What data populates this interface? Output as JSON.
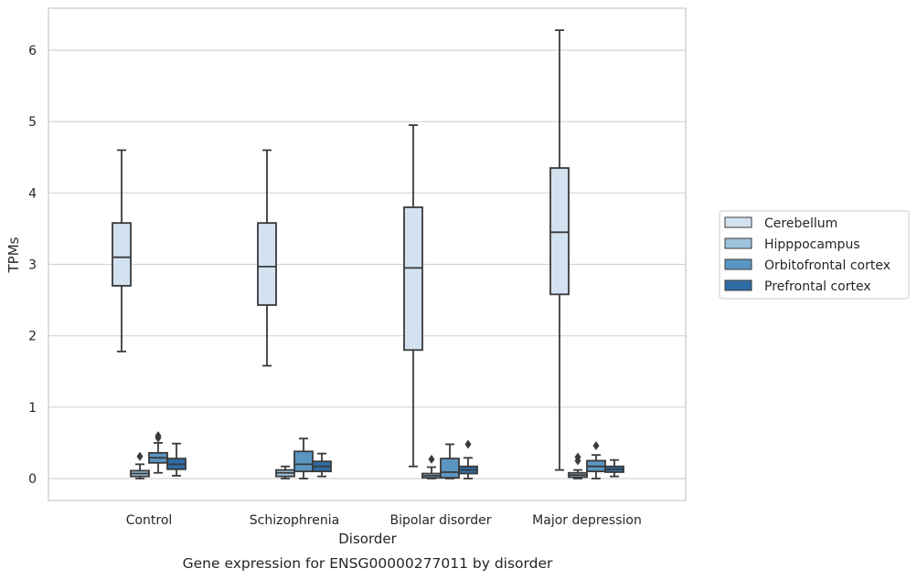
{
  "caption": "Gene expression for ENSG00000277011 by disorder",
  "chart_data": {
    "type": "box",
    "title": "",
    "xlabel": "Disorder",
    "ylabel": "TPMs",
    "ylim": [
      -0.3,
      6.6
    ],
    "yticks": [
      0,
      1,
      2,
      3,
      4,
      5,
      6
    ],
    "grid": "horizontal",
    "legend_position": "right",
    "categories": [
      "Control",
      "Schizophrenia",
      "Bipolar disorder",
      "Major depression"
    ],
    "series": [
      {
        "name": "Cerebellum",
        "color": "#d2e2f0",
        "boxes": [
          {
            "whislo": 1.78,
            "q1": 2.7,
            "med": 3.1,
            "q3": 3.58,
            "whishi": 4.6,
            "fliers": []
          },
          {
            "whislo": 1.58,
            "q1": 2.43,
            "med": 2.97,
            "q3": 3.58,
            "whishi": 4.6,
            "fliers": []
          },
          {
            "whislo": 0.17,
            "q1": 1.8,
            "med": 2.95,
            "q3": 3.8,
            "whishi": 4.95,
            "fliers": []
          },
          {
            "whislo": 0.12,
            "q1": 2.58,
            "med": 3.45,
            "q3": 4.35,
            "whishi": 6.28,
            "fliers": []
          }
        ]
      },
      {
        "name": "Hipppocampus",
        "color": "#9cc2dd",
        "boxes": [
          {
            "whislo": 0.0,
            "q1": 0.03,
            "med": 0.07,
            "q3": 0.11,
            "whishi": 0.2,
            "fliers": [
              0.31
            ]
          },
          {
            "whislo": 0.0,
            "q1": 0.03,
            "med": 0.08,
            "q3": 0.12,
            "whishi": 0.17,
            "fliers": []
          },
          {
            "whislo": 0.0,
            "q1": 0.01,
            "med": 0.04,
            "q3": 0.07,
            "whishi": 0.16,
            "fliers": [
              0.27
            ]
          },
          {
            "whislo": 0.0,
            "q1": 0.02,
            "med": 0.05,
            "q3": 0.08,
            "whishi": 0.12,
            "fliers": [
              0.25,
              0.3
            ]
          }
        ]
      },
      {
        "name": "Orbitofrontal cortex",
        "color": "#5b96c2",
        "boxes": [
          {
            "whislo": 0.08,
            "q1": 0.22,
            "med": 0.29,
            "q3": 0.36,
            "whishi": 0.5,
            "fliers": [
              0.57,
              0.6
            ]
          },
          {
            "whislo": 0.0,
            "q1": 0.1,
            "med": 0.2,
            "q3": 0.38,
            "whishi": 0.56,
            "fliers": []
          },
          {
            "whislo": 0.0,
            "q1": 0.01,
            "med": 0.09,
            "q3": 0.28,
            "whishi": 0.48,
            "fliers": []
          },
          {
            "whislo": 0.0,
            "q1": 0.1,
            "med": 0.17,
            "q3": 0.25,
            "whishi": 0.33,
            "fliers": [
              0.46
            ]
          }
        ]
      },
      {
        "name": "Prefrontal cortex",
        "color": "#2e6ca6",
        "boxes": [
          {
            "whislo": 0.04,
            "q1": 0.13,
            "med": 0.2,
            "q3": 0.28,
            "whishi": 0.49,
            "fliers": []
          },
          {
            "whislo": 0.03,
            "q1": 0.1,
            "med": 0.17,
            "q3": 0.24,
            "whishi": 0.35,
            "fliers": []
          },
          {
            "whislo": 0.0,
            "q1": 0.07,
            "med": 0.12,
            "q3": 0.17,
            "whishi": 0.29,
            "fliers": [
              0.48
            ]
          },
          {
            "whislo": 0.03,
            "q1": 0.09,
            "med": 0.13,
            "q3": 0.17,
            "whishi": 0.26,
            "fliers": []
          }
        ]
      }
    ]
  }
}
